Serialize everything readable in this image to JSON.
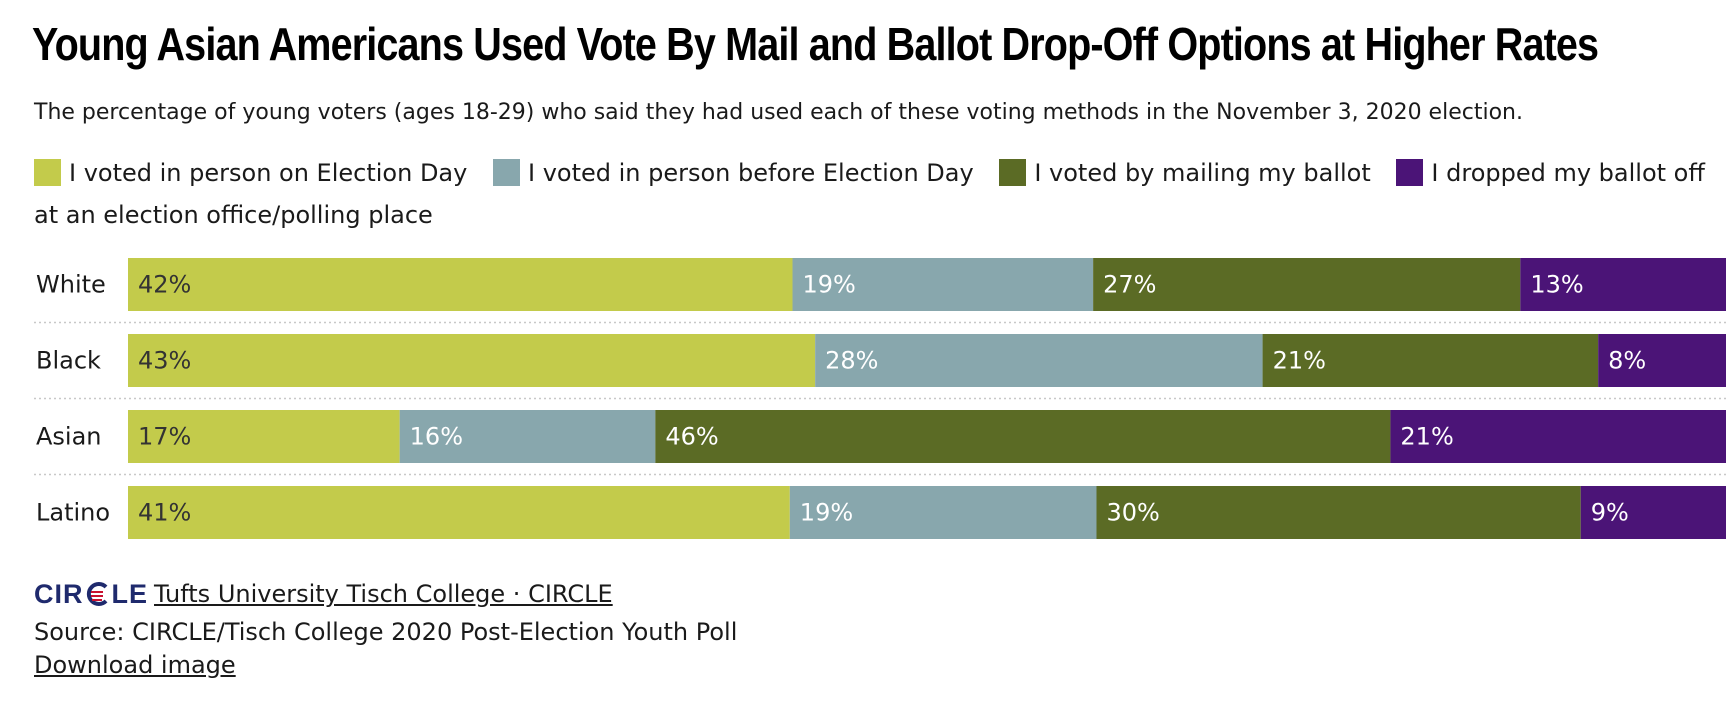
{
  "chart_data": {
    "type": "bar",
    "orientation": "horizontal",
    "stacked": true,
    "title": "Young Asian Americans Used Vote By Mail and Ballot Drop-Off Options at Higher Rates",
    "subtitle": "The percentage of young voters (ages 18-29) who said they had used each of these voting methods in the November 3, 2020 election.",
    "categories": [
      "White",
      "Black",
      "Asian",
      "Latino"
    ],
    "series": [
      {
        "name": "I voted in person on Election Day",
        "color": "#c3cb4b",
        "label_color": "#333333",
        "values": [
          42,
          43,
          17,
          41
        ]
      },
      {
        "name": "I voted in person before Election Day",
        "color": "#88a7ad",
        "label_color": "#ffffff",
        "values": [
          19,
          28,
          16,
          19
        ]
      },
      {
        "name": "I voted by mailing my ballot",
        "color": "#5b6b25",
        "label_color": "#ffffff",
        "values": [
          27,
          21,
          46,
          30
        ]
      },
      {
        "name": "I dropped my ballot off at an election office/polling place",
        "color": "#4b1477",
        "label_color": "#ffffff",
        "values": [
          13,
          8,
          21,
          9
        ]
      }
    ],
    "value_suffix": "%",
    "legend_position": "top",
    "grid": false
  },
  "footer": {
    "brand_logo": "CIRCLE",
    "brand_link": "Tufts University Tisch College · CIRCLE",
    "source": "Source: CIRCLE/Tisch College 2020 Post-Election Youth Poll",
    "download": "Download image"
  }
}
